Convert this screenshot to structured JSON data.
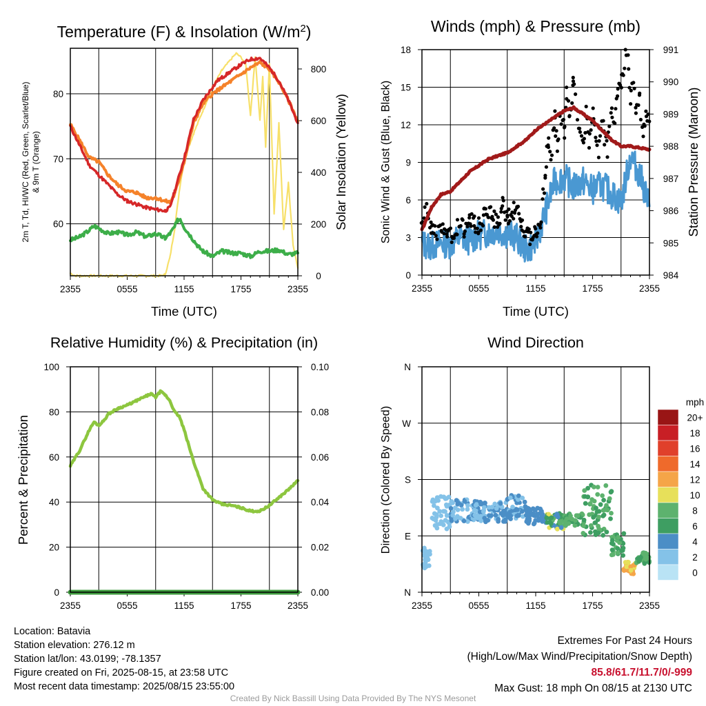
{
  "panels": {
    "temp": {
      "title": "Temperature (F) & Insolation (W/m",
      "title_sup": "2",
      "title_end": ")",
      "ylabel_left": "2m T, Td, HI/WC (Red, Green, Scarlet/Blue)",
      "ylabel_left_line2": "& 9m T (Orange)",
      "ylabel_right": "Solar Insolation (Yellow)",
      "xlabel": "Time (UTC)"
    },
    "wind": {
      "title": "Winds (mph) & Pressure (mb)",
      "ylabel_left": "Sonic Wind & Gust (Blue, Black)",
      "ylabel_right": "Station Pressure (Maroon)",
      "xlabel": "Time (UTC)"
    },
    "rh": {
      "title": "Relative Humidity (%) & Precipitation (in)",
      "ylabel_left": "Percent & Precipitation"
    },
    "dir": {
      "title": "Wind Direction",
      "ylabel_left": "Direction (Colored By Speed)",
      "colorbar_title": "mph"
    }
  },
  "colors": {
    "temp": "#d62728",
    "nine_m": "#f5822a",
    "dewpoint": "#3dae49",
    "solar": "#f7e06a",
    "wind": "#4a98d2",
    "gust": "#000000",
    "pressure": "#a11a1a",
    "rh": "#8dc63f",
    "precip": "#3d9a3d"
  },
  "chart_data": [
    {
      "id": "temp",
      "type": "line",
      "x_ticks": [
        "2355",
        "0555",
        "1155",
        "1755",
        "2355"
      ],
      "hour_gridlines": [
        3,
        9,
        15,
        21
      ],
      "x_range_hours": [
        0,
        24
      ],
      "ylim_left": [
        52,
        87
      ],
      "yticks_left": [
        60,
        70,
        80
      ],
      "ylim_right": [
        0,
        880
      ],
      "yticks_right": [
        0,
        200,
        400,
        600,
        800
      ],
      "series": [
        {
          "key": "t2m",
          "axis": "left",
          "x": [
            0,
            1,
            2,
            3,
            4,
            5,
            6,
            7,
            8,
            9,
            10,
            10.5,
            11,
            12,
            13,
            14,
            15,
            15.5,
            16,
            17,
            18,
            19,
            20,
            21,
            22,
            23,
            24
          ],
          "y": [
            75,
            72,
            69,
            67.5,
            66,
            64.5,
            63.5,
            63,
            62.5,
            62.2,
            62,
            62.5,
            65,
            70,
            76,
            79,
            81,
            82,
            82.5,
            83.5,
            84.5,
            85.3,
            85.5,
            84,
            82,
            79,
            75.5
          ]
        },
        {
          "key": "t9m",
          "axis": "left",
          "x": [
            0,
            1,
            2,
            3,
            4,
            5,
            6,
            7,
            8,
            9,
            10,
            10.5,
            11,
            12,
            13,
            14,
            15,
            15.5,
            16,
            17,
            18,
            19,
            20,
            21,
            22,
            23,
            24
          ],
          "y": [
            75.3,
            72.8,
            70.2,
            69.5,
            67.5,
            66,
            65,
            64.8,
            64,
            64,
            63.5,
            63.3,
            64.5,
            69.5,
            75.5,
            78.5,
            80,
            80.5,
            81,
            82,
            83,
            84,
            84.8,
            83.8,
            81.8,
            79,
            75.8
          ]
        },
        {
          "key": "td",
          "axis": "left",
          "x": [
            0,
            1,
            2,
            2.5,
            3,
            4,
            5,
            6,
            7,
            8,
            9,
            10,
            10.5,
            11,
            11.3,
            11.6,
            12,
            13,
            13.5,
            14,
            15,
            16,
            17,
            18,
            19,
            20,
            21,
            22,
            23,
            24
          ],
          "y": [
            57.5,
            58,
            59,
            59.7,
            59.3,
            58.5,
            58.7,
            58.3,
            58.7,
            58,
            58.5,
            57.8,
            58.5,
            59.5,
            60.5,
            60.8,
            59.5,
            57.5,
            56.5,
            55.8,
            55,
            55.8,
            55.5,
            55.5,
            55,
            55.8,
            55.8,
            56,
            55.3,
            55.5
          ]
        },
        {
          "key": "solar",
          "axis": "right",
          "x": [
            0,
            0.5,
            1,
            9.5,
            10,
            10.5,
            11,
            11.5,
            12,
            13,
            14,
            15,
            16,
            17,
            17.5,
            18,
            18.5,
            19,
            19.5,
            20,
            20.3,
            20.6,
            21,
            21.5,
            22,
            22.5,
            23,
            23.5,
            24
          ],
          "y": [
            10,
            0,
            0,
            0,
            5,
            70,
            180,
            330,
            450,
            550,
            640,
            730,
            795,
            840,
            860,
            845,
            820,
            620,
            850,
            600,
            770,
            500,
            820,
            240,
            590,
            180,
            360,
            120,
            30
          ]
        }
      ]
    },
    {
      "id": "wind",
      "type": "line",
      "x_ticks": [
        "2355",
        "0555",
        "1155",
        "1755",
        "2355"
      ],
      "hour_gridlines": [
        3,
        9,
        15,
        21
      ],
      "x_range_hours": [
        0,
        24
      ],
      "ylim_left": [
        0,
        18
      ],
      "yticks_left": [
        0,
        3,
        6,
        9,
        12,
        15,
        18
      ],
      "ylim_right": [
        984,
        991
      ],
      "yticks_right": [
        984,
        985,
        986,
        987,
        988,
        989,
        990,
        991
      ],
      "series": [
        {
          "key": "sonic_wind",
          "axis": "left",
          "x": [
            0,
            1,
            2,
            3,
            4,
            5,
            6,
            7,
            8,
            9,
            10,
            11,
            12,
            13,
            14,
            15,
            16,
            17,
            18,
            19,
            20,
            21,
            22,
            23,
            24
          ],
          "y": [
            2.5,
            2.3,
            2.6,
            2.5,
            3.0,
            2.8,
            3.2,
            3.4,
            3.6,
            3.3,
            3.0,
            2.0,
            2.6,
            5.0,
            7.5,
            7.8,
            7.0,
            7.5,
            6.8,
            7.2,
            6.5,
            5.8,
            9.5,
            8.0,
            5.5
          ]
        },
        {
          "key": "gust",
          "axis": "left",
          "x": [
            0,
            0.5,
            1,
            1.5,
            2,
            2.5,
            3,
            3.5,
            4,
            4.5,
            5,
            5.5,
            6,
            6.5,
            7,
            7.5,
            8,
            8.5,
            9,
            9.5,
            10,
            10.5,
            11,
            11.5,
            12,
            12.5,
            13,
            13.3,
            13.6,
            14,
            14.3,
            14.6,
            15,
            15.3,
            15.6,
            16,
            16.3,
            16.6,
            17,
            17.3,
            17.6,
            18,
            18.3,
            18.6,
            19,
            19.3,
            19.6,
            20,
            20.3,
            20.6,
            21,
            21.3,
            21.5,
            21.7,
            22,
            22.3,
            22.6,
            23,
            23.3,
            23.6,
            24
          ],
          "y": [
            4.5,
            5,
            3.8,
            3.2,
            3.5,
            4,
            3.2,
            3.6,
            4.3,
            3.5,
            4.6,
            4.2,
            3.9,
            4.8,
            5.2,
            4.5,
            4.3,
            5.5,
            4.7,
            5,
            5.3,
            4.1,
            3.5,
            3,
            3.3,
            4.2,
            7.5,
            10.8,
            9.5,
            12.5,
            10.3,
            13,
            11.5,
            14.5,
            12.5,
            15.5,
            13,
            11.8,
            10.5,
            12.8,
            10.8,
            13.4,
            11.3,
            9.8,
            12.2,
            10.7,
            9.8,
            13.6,
            12.4,
            14.6,
            15.2,
            16.4,
            18,
            17.2,
            13.8,
            15.7,
            12.7,
            14.1,
            10.8,
            12.5,
            12.4
          ]
        },
        {
          "key": "pressure",
          "axis": "right",
          "x": [
            0,
            1,
            2,
            3,
            4,
            5,
            6,
            7,
            8,
            9,
            10,
            11,
            12,
            13,
            14,
            15,
            16,
            17,
            18,
            19,
            20,
            21,
            22,
            23,
            24
          ],
          "y": [
            985.4,
            986.1,
            986.5,
            986.6,
            986.9,
            987.2,
            987.4,
            987.6,
            987.7,
            987.8,
            988.0,
            988.2,
            988.5,
            988.7,
            988.9,
            989.1,
            989.2,
            989.0,
            988.8,
            988.5,
            988.2,
            988.0,
            988.0,
            987.95,
            987.9
          ]
        }
      ]
    },
    {
      "id": "rh",
      "type": "line",
      "x_ticks": [
        "2355",
        "0555",
        "1155",
        "1755",
        "2355"
      ],
      "hour_gridlines": [
        3,
        9,
        15,
        21
      ],
      "x_range_hours": [
        0,
        24
      ],
      "ylim_left": [
        0,
        100
      ],
      "yticks_left": [
        0,
        20,
        40,
        60,
        80,
        100
      ],
      "ylim_right": [
        0,
        0.1
      ],
      "yticks_right": [
        "0.00",
        "0.02",
        "0.04",
        "0.06",
        "0.08",
        "0.10"
      ],
      "series": [
        {
          "key": "rh",
          "axis": "left",
          "x": [
            0,
            1,
            2,
            2.5,
            3,
            3.5,
            4,
            5,
            6,
            7,
            8,
            8.5,
            9,
            9.5,
            10,
            10.5,
            11,
            11.5,
            12,
            13,
            14,
            15,
            16,
            17,
            18,
            19,
            20,
            21,
            22,
            23,
            24
          ],
          "y": [
            56,
            63,
            72,
            75.5,
            74,
            76,
            79,
            81.5,
            83,
            85,
            87,
            88,
            86.5,
            89,
            87.5,
            85,
            80,
            78,
            72,
            58,
            46,
            41,
            39,
            38.5,
            37.5,
            36,
            36,
            38.5,
            42,
            45.5,
            49.5
          ]
        },
        {
          "key": "precip",
          "axis": "right",
          "x": [
            0,
            24
          ],
          "y": [
            0,
            0
          ]
        }
      ]
    },
    {
      "id": "dir",
      "type": "scatter",
      "x_ticks": [
        "2355",
        "0555",
        "1155",
        "1755",
        "2355"
      ],
      "hour_gridlines": [
        3,
        9,
        15,
        21
      ],
      "x_range_hours": [
        0,
        24
      ],
      "ylim_left": [
        0,
        400
      ],
      "yticks_left": [
        "N",
        "E",
        "S",
        "W",
        "N"
      ],
      "yticks_values": [
        0,
        100,
        200,
        300,
        400
      ],
      "colorbar": {
        "labels": [
          "0",
          "2",
          "4",
          "6",
          "8",
          "10",
          "12",
          "14",
          "16",
          "18",
          "20+"
        ],
        "colors": [
          "#b9e3f5",
          "#84c2e8",
          "#4b8ec6",
          "#3e9e62",
          "#5db26e",
          "#e7e05a",
          "#f5a548",
          "#ef6a2b",
          "#e0402b",
          "#c81f25",
          "#991515"
        ]
      },
      "clusters": [
        {
          "from": 0,
          "to": 1,
          "dmin": 40,
          "dmax": 80,
          "smin": 1,
          "smax": 3
        },
        {
          "from": 1,
          "to": 3,
          "dmin": 110,
          "dmax": 170,
          "smin": 1,
          "smax": 3
        },
        {
          "from": 3,
          "to": 6,
          "dmin": 125,
          "dmax": 165,
          "smin": 1,
          "smax": 4
        },
        {
          "from": 6,
          "to": 9,
          "dmin": 125,
          "dmax": 160,
          "smin": 2,
          "smax": 5
        },
        {
          "from": 9,
          "to": 11,
          "dmin": 130,
          "dmax": 172,
          "smin": 2,
          "smax": 5
        },
        {
          "from": 11,
          "to": 13,
          "dmin": 120,
          "dmax": 150,
          "smin": 3,
          "smax": 5
        },
        {
          "from": 13,
          "to": 15,
          "dmin": 112,
          "dmax": 140,
          "smin": 4,
          "smax": 10
        },
        {
          "from": 15,
          "to": 17,
          "dmin": 115,
          "dmax": 140,
          "smin": 5,
          "smax": 9
        },
        {
          "from": 17,
          "to": 20,
          "dmin": 100,
          "dmax": 190,
          "smin": 5,
          "smax": 9
        },
        {
          "from": 20,
          "to": 21.3,
          "dmin": 65,
          "dmax": 105,
          "smin": 5,
          "smax": 8
        },
        {
          "from": 21.3,
          "to": 22.5,
          "dmin": 30,
          "dmax": 55,
          "smin": 10,
          "smax": 13
        },
        {
          "from": 22.5,
          "to": 24,
          "dmin": 50,
          "dmax": 70,
          "smin": 5,
          "smax": 9
        }
      ]
    }
  ],
  "info": {
    "location": "Location: Batavia",
    "elevation": "Station elevation: 276.12 m",
    "latlon": "Station lat/lon: 43.0199; -78.1357",
    "created": "Figure created on Fri, 2025-08-15, at 23:58 UTC",
    "recent": "Most recent data timestamp: 2025/08/15 23:55:00"
  },
  "extremes": {
    "title": "Extremes For Past 24 Hours",
    "subtitle": "(High/Low/Max Wind/Precipitation/Snow Depth)",
    "values": "85.8/61.7/11.7/0/-999",
    "gust": "Max Gust: 18 mph On 08/15 at 2130 UTC"
  },
  "credit": "Created By Nick Bassill Using Data Provided By The NYS Mesonet"
}
